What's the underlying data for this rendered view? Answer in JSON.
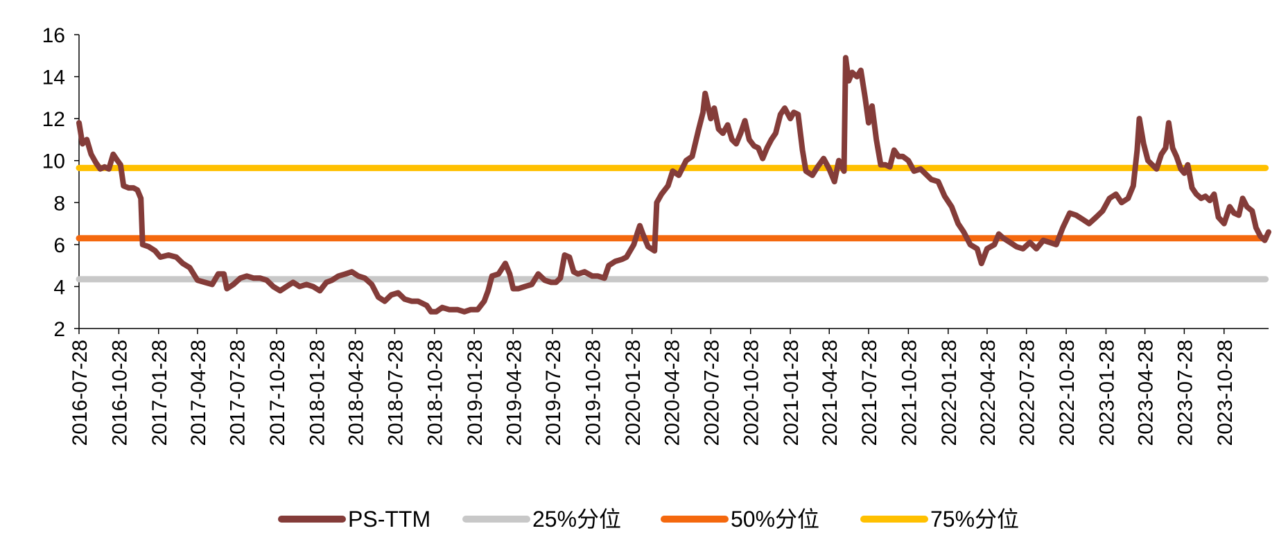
{
  "chart_data": {
    "type": "line",
    "title": "",
    "xlabel": "",
    "ylabel": "",
    "ylim": [
      2,
      16
    ],
    "y_ticks": [
      2,
      4,
      6,
      8,
      10,
      12,
      14,
      16
    ],
    "x_range": [
      "2016-07-28",
      "2024-02-08"
    ],
    "x_tick_labels": [
      "2016-07-28",
      "2016-10-28",
      "2017-01-28",
      "2017-04-28",
      "2017-07-28",
      "2017-10-28",
      "2018-01-28",
      "2018-04-28",
      "2018-07-28",
      "2018-10-28",
      "2019-01-28",
      "2019-04-28",
      "2019-07-28",
      "2019-10-28",
      "2020-01-28",
      "2020-04-28",
      "2020-07-28",
      "2020-10-28",
      "2021-01-28",
      "2021-04-28",
      "2021-07-28",
      "2021-10-28",
      "2022-01-28",
      "2022-04-28",
      "2022-07-28",
      "2022-10-28",
      "2023-01-28",
      "2023-04-28",
      "2023-07-28",
      "2023-10-28"
    ],
    "grid": false,
    "legend_position": "bottom",
    "series": [
      {
        "name": "PS-TTM",
        "color": "#843C39",
        "points": [
          [
            "2016-07-28",
            11.8
          ],
          [
            "2016-08-05",
            10.8
          ],
          [
            "2016-08-15",
            11.0
          ],
          [
            "2016-08-25",
            10.3
          ],
          [
            "2016-09-05",
            9.9
          ],
          [
            "2016-09-15",
            9.6
          ],
          [
            "2016-09-25",
            9.7
          ],
          [
            "2016-10-05",
            9.6
          ],
          [
            "2016-10-15",
            10.3
          ],
          [
            "2016-10-25",
            10.0
          ],
          [
            "2016-11-01",
            9.8
          ],
          [
            "2016-11-08",
            8.8
          ],
          [
            "2016-11-20",
            8.7
          ],
          [
            "2016-12-01",
            8.7
          ],
          [
            "2016-12-10",
            8.6
          ],
          [
            "2016-12-18",
            8.2
          ],
          [
            "2016-12-22",
            6.0
          ],
          [
            "2017-01-05",
            5.9
          ],
          [
            "2017-01-20",
            5.7
          ],
          [
            "2017-02-01",
            5.4
          ],
          [
            "2017-02-20",
            5.5
          ],
          [
            "2017-03-10",
            5.4
          ],
          [
            "2017-03-25",
            5.1
          ],
          [
            "2017-04-10",
            4.9
          ],
          [
            "2017-04-28",
            4.3
          ],
          [
            "2017-05-15",
            4.2
          ],
          [
            "2017-06-01",
            4.1
          ],
          [
            "2017-06-15",
            4.6
          ],
          [
            "2017-06-28",
            4.6
          ],
          [
            "2017-07-05",
            3.9
          ],
          [
            "2017-07-20",
            4.1
          ],
          [
            "2017-08-05",
            4.4
          ],
          [
            "2017-08-20",
            4.5
          ],
          [
            "2017-09-05",
            4.4
          ],
          [
            "2017-09-20",
            4.4
          ],
          [
            "2017-10-05",
            4.3
          ],
          [
            "2017-10-20",
            4.0
          ],
          [
            "2017-11-05",
            3.8
          ],
          [
            "2017-11-20",
            4.0
          ],
          [
            "2017-12-05",
            4.2
          ],
          [
            "2017-12-20",
            4.0
          ],
          [
            "2018-01-05",
            4.1
          ],
          [
            "2018-01-20",
            4.0
          ],
          [
            "2018-02-05",
            3.8
          ],
          [
            "2018-02-20",
            4.2
          ],
          [
            "2018-03-05",
            4.3
          ],
          [
            "2018-03-20",
            4.5
          ],
          [
            "2018-04-05",
            4.6
          ],
          [
            "2018-04-20",
            4.7
          ],
          [
            "2018-05-05",
            4.5
          ],
          [
            "2018-05-20",
            4.4
          ],
          [
            "2018-06-05",
            4.1
          ],
          [
            "2018-06-20",
            3.5
          ],
          [
            "2018-07-05",
            3.3
          ],
          [
            "2018-07-20",
            3.6
          ],
          [
            "2018-08-05",
            3.7
          ],
          [
            "2018-08-20",
            3.4
          ],
          [
            "2018-09-05",
            3.3
          ],
          [
            "2018-09-20",
            3.3
          ],
          [
            "2018-10-10",
            3.1
          ],
          [
            "2018-10-20",
            2.8
          ],
          [
            "2018-11-01",
            2.8
          ],
          [
            "2018-11-15",
            3.0
          ],
          [
            "2018-12-01",
            2.9
          ],
          [
            "2018-12-20",
            2.9
          ],
          [
            "2019-01-05",
            2.8
          ],
          [
            "2019-01-20",
            2.9
          ],
          [
            "2019-02-05",
            2.9
          ],
          [
            "2019-02-20",
            3.3
          ],
          [
            "2019-03-01",
            3.8
          ],
          [
            "2019-03-10",
            4.5
          ],
          [
            "2019-03-25",
            4.6
          ],
          [
            "2019-04-10",
            5.1
          ],
          [
            "2019-04-20",
            4.6
          ],
          [
            "2019-04-28",
            3.9
          ],
          [
            "2019-05-10",
            3.9
          ],
          [
            "2019-05-25",
            4.0
          ],
          [
            "2019-06-10",
            4.1
          ],
          [
            "2019-06-25",
            4.6
          ],
          [
            "2019-07-10",
            4.3
          ],
          [
            "2019-07-25",
            4.2
          ],
          [
            "2019-08-05",
            4.2
          ],
          [
            "2019-08-15",
            4.4
          ],
          [
            "2019-08-25",
            5.5
          ],
          [
            "2019-09-05",
            5.4
          ],
          [
            "2019-09-15",
            4.7
          ],
          [
            "2019-09-25",
            4.6
          ],
          [
            "2019-10-10",
            4.7
          ],
          [
            "2019-10-28",
            4.5
          ],
          [
            "2019-11-10",
            4.5
          ],
          [
            "2019-11-25",
            4.4
          ],
          [
            "2019-12-05",
            5.0
          ],
          [
            "2019-12-20",
            5.2
          ],
          [
            "2020-01-05",
            5.3
          ],
          [
            "2020-01-15",
            5.4
          ],
          [
            "2020-02-01",
            6.0
          ],
          [
            "2020-02-10",
            6.6
          ],
          [
            "2020-02-15",
            6.9
          ],
          [
            "2020-02-22",
            6.5
          ],
          [
            "2020-03-05",
            5.9
          ],
          [
            "2020-03-20",
            5.7
          ],
          [
            "2020-03-25",
            8.0
          ],
          [
            "2020-04-05",
            8.4
          ],
          [
            "2020-04-20",
            8.8
          ],
          [
            "2020-05-01",
            9.5
          ],
          [
            "2020-05-15",
            9.3
          ],
          [
            "2020-06-01",
            10.0
          ],
          [
            "2020-06-15",
            10.2
          ],
          [
            "2020-06-30",
            11.5
          ],
          [
            "2020-07-10",
            12.3
          ],
          [
            "2020-07-15",
            13.2
          ],
          [
            "2020-07-28",
            12.0
          ],
          [
            "2020-08-05",
            12.5
          ],
          [
            "2020-08-15",
            11.5
          ],
          [
            "2020-08-25",
            11.3
          ],
          [
            "2020-09-05",
            11.7
          ],
          [
            "2020-09-15",
            11.0
          ],
          [
            "2020-09-25",
            10.8
          ],
          [
            "2020-10-05",
            11.3
          ],
          [
            "2020-10-15",
            11.9
          ],
          [
            "2020-10-25",
            11.0
          ],
          [
            "2020-11-05",
            10.7
          ],
          [
            "2020-11-15",
            10.6
          ],
          [
            "2020-11-25",
            10.1
          ],
          [
            "2020-12-05",
            10.6
          ],
          [
            "2020-12-15",
            11.0
          ],
          [
            "2020-12-25",
            11.3
          ],
          [
            "2021-01-05",
            12.2
          ],
          [
            "2021-01-15",
            12.5
          ],
          [
            "2021-01-28",
            12.0
          ],
          [
            "2021-02-05",
            12.3
          ],
          [
            "2021-02-15",
            12.2
          ],
          [
            "2021-02-25",
            10.5
          ],
          [
            "2021-03-05",
            9.5
          ],
          [
            "2021-03-20",
            9.3
          ],
          [
            "2021-04-01",
            9.7
          ],
          [
            "2021-04-15",
            10.1
          ],
          [
            "2021-04-28",
            9.6
          ],
          [
            "2021-05-10",
            9.0
          ],
          [
            "2021-05-20",
            10.0
          ],
          [
            "2021-06-01",
            9.5
          ],
          [
            "2021-06-05",
            14.9
          ],
          [
            "2021-06-12",
            13.8
          ],
          [
            "2021-06-20",
            14.2
          ],
          [
            "2021-07-01",
            14.0
          ],
          [
            "2021-07-10",
            14.3
          ],
          [
            "2021-07-20",
            13.0
          ],
          [
            "2021-07-28",
            11.8
          ],
          [
            "2021-08-05",
            12.6
          ],
          [
            "2021-08-15",
            11.0
          ],
          [
            "2021-08-25",
            9.8
          ],
          [
            "2021-09-05",
            9.8
          ],
          [
            "2021-09-15",
            9.7
          ],
          [
            "2021-09-25",
            10.5
          ],
          [
            "2021-10-05",
            10.2
          ],
          [
            "2021-10-15",
            10.2
          ],
          [
            "2021-10-28",
            10.0
          ],
          [
            "2021-11-10",
            9.5
          ],
          [
            "2021-11-25",
            9.6
          ],
          [
            "2021-12-10",
            9.3
          ],
          [
            "2021-12-20",
            9.1
          ],
          [
            "2022-01-05",
            9.0
          ],
          [
            "2022-01-20",
            8.3
          ],
          [
            "2022-02-05",
            7.8
          ],
          [
            "2022-02-20",
            7.0
          ],
          [
            "2022-03-05",
            6.6
          ],
          [
            "2022-03-20",
            6.0
          ],
          [
            "2022-04-05",
            5.8
          ],
          [
            "2022-04-15",
            5.1
          ],
          [
            "2022-04-28",
            5.8
          ],
          [
            "2022-05-15",
            6.0
          ],
          [
            "2022-05-25",
            6.5
          ],
          [
            "2022-06-05",
            6.3
          ],
          [
            "2022-06-20",
            6.1
          ],
          [
            "2022-07-05",
            5.9
          ],
          [
            "2022-07-20",
            5.8
          ],
          [
            "2022-08-05",
            6.1
          ],
          [
            "2022-08-20",
            5.8
          ],
          [
            "2022-09-05",
            6.2
          ],
          [
            "2022-09-20",
            6.1
          ],
          [
            "2022-10-05",
            6.0
          ],
          [
            "2022-10-20",
            6.8
          ],
          [
            "2022-11-05",
            7.5
          ],
          [
            "2022-11-20",
            7.4
          ],
          [
            "2022-12-05",
            7.2
          ],
          [
            "2022-12-20",
            7.0
          ],
          [
            "2023-01-05",
            7.3
          ],
          [
            "2023-01-20",
            7.6
          ],
          [
            "2023-02-05",
            8.2
          ],
          [
            "2023-02-20",
            8.4
          ],
          [
            "2023-03-05",
            8.0
          ],
          [
            "2023-03-20",
            8.2
          ],
          [
            "2023-04-01",
            8.8
          ],
          [
            "2023-04-10",
            10.5
          ],
          [
            "2023-04-15",
            12.0
          ],
          [
            "2023-04-25",
            10.8
          ],
          [
            "2023-05-05",
            10.0
          ],
          [
            "2023-05-15",
            9.8
          ],
          [
            "2023-05-25",
            9.6
          ],
          [
            "2023-06-05",
            10.3
          ],
          [
            "2023-06-15",
            10.6
          ],
          [
            "2023-06-22",
            11.8
          ],
          [
            "2023-07-01",
            10.6
          ],
          [
            "2023-07-10",
            10.2
          ],
          [
            "2023-07-20",
            9.6
          ],
          [
            "2023-07-28",
            9.4
          ],
          [
            "2023-08-05",
            9.8
          ],
          [
            "2023-08-15",
            8.7
          ],
          [
            "2023-08-25",
            8.4
          ],
          [
            "2023-09-05",
            8.2
          ],
          [
            "2023-09-15",
            8.3
          ],
          [
            "2023-09-25",
            8.1
          ],
          [
            "2023-10-05",
            8.4
          ],
          [
            "2023-10-15",
            7.3
          ],
          [
            "2023-10-28",
            7.0
          ],
          [
            "2023-11-10",
            7.8
          ],
          [
            "2023-11-20",
            7.5
          ],
          [
            "2023-12-01",
            7.4
          ],
          [
            "2023-12-10",
            8.2
          ],
          [
            "2023-12-20",
            7.8
          ],
          [
            "2024-01-01",
            7.6
          ],
          [
            "2024-01-10",
            6.8
          ],
          [
            "2024-01-20",
            6.4
          ],
          [
            "2024-01-30",
            6.2
          ],
          [
            "2024-02-08",
            6.6
          ]
        ]
      },
      {
        "name": "25%分位",
        "color": "#C8C8C8",
        "constant": 4.35
      },
      {
        "name": "50%分位",
        "color": "#F4680E",
        "constant": 6.3
      },
      {
        "name": "75%分位",
        "color": "#FFC000",
        "constant": 9.65
      }
    ]
  }
}
